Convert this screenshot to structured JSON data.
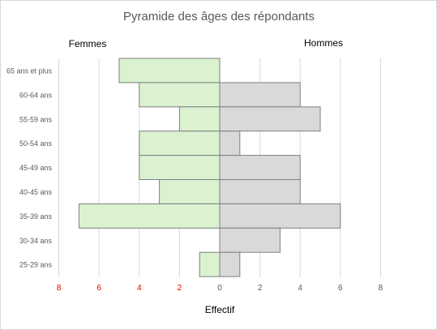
{
  "chart_data": {
    "type": "bar",
    "orientation": "horizontal",
    "layout": "population-pyramid",
    "title": "Pyramide des âges des répondants",
    "xlabel": "Effectif",
    "ylabel": "",
    "categories": [
      "65 ans et plus",
      "60-64 ans",
      "55-59 ans",
      "50-54 ans",
      "45-49 ans",
      "40-45 ans",
      "35-39 ans",
      "30-34 ans",
      "25-29 ans"
    ],
    "series": [
      {
        "name": "Femmes",
        "side": "left",
        "color": "#daf2d0",
        "values": [
          5,
          4,
          2,
          4,
          4,
          3,
          7,
          0,
          1
        ]
      },
      {
        "name": "Hommes",
        "side": "right",
        "color": "#d9d9d9",
        "values": [
          0,
          4,
          5,
          1,
          4,
          4,
          6,
          3,
          1
        ]
      }
    ],
    "xticks": [
      "8",
      "6",
      "4",
      "2",
      "0",
      "2",
      "4",
      "6",
      "8"
    ],
    "xlim": [
      -8,
      8
    ],
    "left_tick_color": "#e00000",
    "right_tick_color": "#595959",
    "bar_edge_color": "#7f7f7f",
    "grid": "vertical",
    "legend": "series names above each side"
  }
}
